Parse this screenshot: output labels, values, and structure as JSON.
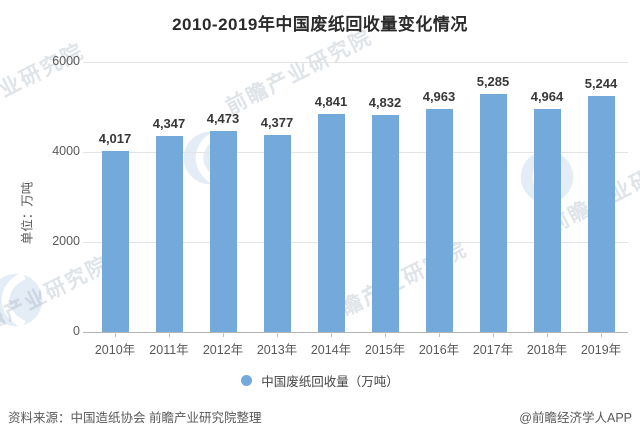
{
  "title": "2010-2019年中国废纸回收量变化情况",
  "y_axis": {
    "unit_label": "单位：万吨"
  },
  "chart_data": {
    "type": "bar",
    "title": "2010-2019年中国废纸回收量变化情况",
    "categories": [
      "2010年",
      "2011年",
      "2012年",
      "2013年",
      "2014年",
      "2015年",
      "2016年",
      "2017年",
      "2018年",
      "2019年"
    ],
    "values": [
      4017,
      4347,
      4473,
      4377,
      4841,
      4832,
      4963,
      5285,
      4964,
      5244
    ],
    "value_labels": [
      "4,017",
      "4,347",
      "4,473",
      "4,377",
      "4,841",
      "4,832",
      "4,963",
      "5,285",
      "4,964",
      "5,244"
    ],
    "series_name": "中国废纸回收量（万吨）",
    "xlabel": "",
    "ylabel": "单位：万吨",
    "ylim": [
      0,
      6000
    ],
    "yticks": [
      0,
      2000,
      4000,
      6000
    ],
    "grid": true,
    "legend_position": "bottom",
    "bar_color": "#74A9DC"
  },
  "legend": {
    "label": "中国废纸回收量（万吨）",
    "marker_color": "#74A9DC"
  },
  "footer": {
    "source": "资料来源：中国造纸协会 前瞻产业研究院整理",
    "credit": "@前瞻经济学人APP"
  },
  "watermark": {
    "text": "前瞻产业研究院",
    "logo_name": "qianzhan-logo"
  }
}
